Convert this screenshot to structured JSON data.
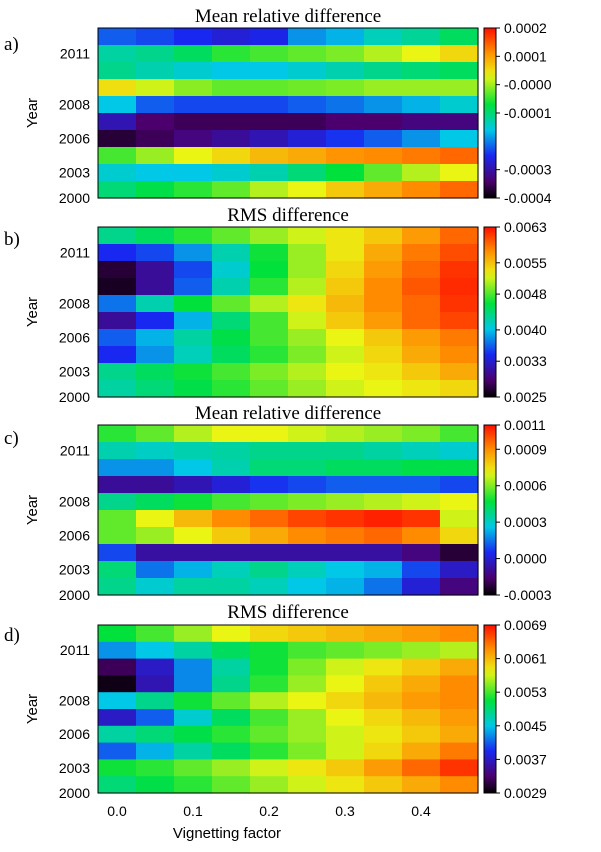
{
  "figure": {
    "x_axis": {
      "label": "Vignetting factor",
      "ticks": [
        0.0,
        0.1,
        0.2,
        0.3,
        0.4
      ],
      "tick_labels": [
        "0.0",
        "0.1",
        "0.2",
        "0.3",
        "0.4"
      ]
    }
  },
  "chart_data": [
    {
      "type": "heatmap",
      "panel_label": "a)",
      "title": "Mean relative difference",
      "ylabel": "Year",
      "xlabel": "",
      "y_tick_labels": [
        "2011",
        "2008",
        "2006",
        "2003",
        "2000"
      ],
      "x": [
        0.0,
        0.05,
        0.1,
        0.15,
        0.2,
        0.25,
        0.3,
        0.35,
        0.4,
        0.45
      ],
      "colorbar": {
        "min": -0.0004,
        "max": 0.0002,
        "tick_values": [
          0.0002,
          0.0001,
          0.0,
          -0.0001,
          -0.0003,
          -0.0004
        ],
        "tick_labels": [
          "0.0002",
          "0.0001",
          "-0.0000",
          "-0.0001",
          "-0.0003",
          "-0.0004"
        ]
      },
      "values_normalized_top_to_bottom": [
        [
          0.3,
          0.28,
          0.25,
          0.22,
          0.24,
          0.35,
          0.38,
          0.44,
          0.47,
          0.52
        ],
        [
          0.46,
          0.48,
          0.52,
          0.58,
          0.6,
          0.62,
          0.64,
          0.68,
          0.72,
          0.76
        ],
        [
          0.48,
          0.45,
          0.42,
          0.4,
          0.4,
          0.42,
          0.45,
          0.48,
          0.5,
          0.52
        ],
        [
          0.75,
          0.7,
          0.65,
          0.62,
          0.62,
          0.63,
          0.64,
          0.66,
          0.66,
          0.66
        ],
        [
          0.4,
          0.3,
          0.28,
          0.28,
          0.28,
          0.3,
          0.32,
          0.35,
          0.38,
          0.42
        ],
        [
          0.18,
          0.1,
          0.08,
          0.08,
          0.08,
          0.08,
          0.1,
          0.1,
          0.12,
          0.12
        ],
        [
          0.05,
          0.08,
          0.12,
          0.15,
          0.18,
          0.22,
          0.26,
          0.3,
          0.35,
          0.4
        ],
        [
          0.6,
          0.66,
          0.72,
          0.76,
          0.8,
          0.82,
          0.85,
          0.86,
          0.88,
          0.9
        ],
        [
          0.42,
          0.4,
          0.4,
          0.42,
          0.45,
          0.5,
          0.55,
          0.62,
          0.68,
          0.72
        ],
        [
          0.5,
          0.54,
          0.58,
          0.62,
          0.68,
          0.72,
          0.78,
          0.82,
          0.86,
          0.9
        ]
      ]
    },
    {
      "type": "heatmap",
      "panel_label": "b)",
      "title": "RMS difference",
      "ylabel": "Year",
      "xlabel": "",
      "y_tick_labels": [
        "2011",
        "2008",
        "2006",
        "2003",
        "2000"
      ],
      "x": [
        0.0,
        0.05,
        0.1,
        0.15,
        0.2,
        0.25,
        0.3,
        0.35,
        0.4,
        0.45
      ],
      "colorbar": {
        "min": 0.0025,
        "max": 0.0063,
        "tick_values": [
          0.0063,
          0.0055,
          0.0048,
          0.004,
          0.0033,
          0.0025
        ],
        "tick_labels": [
          "0.0063",
          "0.0055",
          "0.0048",
          "0.0040",
          "0.0033",
          "0.0025"
        ]
      },
      "values_normalized_top_to_bottom": [
        [
          0.48,
          0.52,
          0.58,
          0.62,
          0.66,
          0.7,
          0.74,
          0.78,
          0.84,
          0.9
        ],
        [
          0.25,
          0.28,
          0.35,
          0.45,
          0.56,
          0.66,
          0.74,
          0.82,
          0.88,
          0.93
        ],
        [
          0.05,
          0.15,
          0.28,
          0.42,
          0.55,
          0.66,
          0.76,
          0.84,
          0.9,
          0.96
        ],
        [
          0.03,
          0.15,
          0.3,
          0.45,
          0.58,
          0.68,
          0.78,
          0.86,
          0.92,
          0.97
        ],
        [
          0.32,
          0.45,
          0.55,
          0.62,
          0.68,
          0.74,
          0.8,
          0.86,
          0.9,
          0.96
        ],
        [
          0.15,
          0.25,
          0.38,
          0.5,
          0.6,
          0.7,
          0.78,
          0.84,
          0.9,
          0.94
        ],
        [
          0.3,
          0.38,
          0.46,
          0.54,
          0.6,
          0.66,
          0.72,
          0.78,
          0.84,
          0.88
        ],
        [
          0.25,
          0.35,
          0.44,
          0.52,
          0.58,
          0.64,
          0.7,
          0.76,
          0.82,
          0.86
        ],
        [
          0.48,
          0.52,
          0.56,
          0.6,
          0.64,
          0.68,
          0.72,
          0.74,
          0.78,
          0.82
        ],
        [
          0.46,
          0.5,
          0.54,
          0.58,
          0.62,
          0.66,
          0.7,
          0.72,
          0.74,
          0.76
        ]
      ]
    },
    {
      "type": "heatmap",
      "panel_label": "c)",
      "title": "Mean relative difference",
      "ylabel": "Year",
      "xlabel": "",
      "y_tick_labels": [
        "2011",
        "2008",
        "2006",
        "2003",
        "2000"
      ],
      "x": [
        0.0,
        0.05,
        0.1,
        0.15,
        0.2,
        0.25,
        0.3,
        0.35,
        0.4,
        0.45
      ],
      "colorbar": {
        "min": -0.0003,
        "max": 0.0011,
        "tick_values": [
          0.0011,
          0.0009,
          0.0006,
          0.0003,
          0.0,
          -0.0003
        ],
        "tick_labels": [
          "0.0011",
          "0.0009",
          "0.0006",
          "0.0003",
          "0.0000",
          "-0.0003"
        ]
      },
      "values_normalized_top_to_bottom": [
        [
          0.58,
          0.62,
          0.68,
          0.72,
          0.72,
          0.7,
          0.68,
          0.66,
          0.64,
          0.6
        ],
        [
          0.45,
          0.43,
          0.45,
          0.46,
          0.48,
          0.48,
          0.48,
          0.46,
          0.44,
          0.42
        ],
        [
          0.35,
          0.35,
          0.4,
          0.45,
          0.5,
          0.5,
          0.52,
          0.52,
          0.54,
          0.54
        ],
        [
          0.15,
          0.15,
          0.18,
          0.22,
          0.26,
          0.28,
          0.3,
          0.3,
          0.3,
          0.28
        ],
        [
          0.48,
          0.52,
          0.56,
          0.6,
          0.62,
          0.64,
          0.66,
          0.68,
          0.7,
          0.72
        ],
        [
          0.62,
          0.72,
          0.8,
          0.86,
          0.9,
          0.94,
          0.96,
          0.98,
          0.96,
          0.7
        ],
        [
          0.62,
          0.66,
          0.72,
          0.78,
          0.82,
          0.86,
          0.88,
          0.9,
          0.86,
          0.76
        ],
        [
          0.28,
          0.16,
          0.16,
          0.16,
          0.16,
          0.16,
          0.16,
          0.16,
          0.12,
          0.05
        ],
        [
          0.5,
          0.32,
          0.38,
          0.44,
          0.48,
          0.44,
          0.4,
          0.38,
          0.28,
          0.2
        ],
        [
          0.48,
          0.42,
          0.46,
          0.46,
          0.44,
          0.4,
          0.38,
          0.32,
          0.22,
          0.12
        ]
      ]
    },
    {
      "type": "heatmap",
      "panel_label": "d)",
      "title": "RMS difference",
      "ylabel": "Year",
      "xlabel": "Vignetting factor",
      "y_tick_labels": [
        "2011",
        "2008",
        "2006",
        "2003",
        "2000"
      ],
      "x": [
        0.0,
        0.05,
        0.1,
        0.15,
        0.2,
        0.25,
        0.3,
        0.35,
        0.4,
        0.45
      ],
      "colorbar": {
        "min": 0.0029,
        "max": 0.0069,
        "tick_values": [
          0.0069,
          0.0061,
          0.0053,
          0.0045,
          0.0037,
          0.0029
        ],
        "tick_labels": [
          "0.0069",
          "0.0061",
          "0.0053",
          "0.0045",
          "0.0037",
          "0.0029"
        ]
      },
      "values_normalized_top_to_bottom": [
        [
          0.55,
          0.6,
          0.66,
          0.72,
          0.76,
          0.78,
          0.8,
          0.82,
          0.84,
          0.86
        ],
        [
          0.35,
          0.4,
          0.46,
          0.52,
          0.56,
          0.6,
          0.62,
          0.64,
          0.66,
          0.68
        ],
        [
          0.08,
          0.2,
          0.34,
          0.46,
          0.56,
          0.64,
          0.7,
          0.74,
          0.78,
          0.82
        ],
        [
          0.02,
          0.18,
          0.34,
          0.48,
          0.58,
          0.66,
          0.72,
          0.78,
          0.82,
          0.86
        ],
        [
          0.4,
          0.48,
          0.56,
          0.62,
          0.68,
          0.72,
          0.76,
          0.8,
          0.84,
          0.86
        ],
        [
          0.2,
          0.3,
          0.42,
          0.52,
          0.6,
          0.66,
          0.72,
          0.76,
          0.8,
          0.84
        ],
        [
          0.46,
          0.5,
          0.54,
          0.58,
          0.62,
          0.66,
          0.7,
          0.74,
          0.78,
          0.82
        ],
        [
          0.3,
          0.38,
          0.46,
          0.52,
          0.58,
          0.64,
          0.7,
          0.76,
          0.82,
          0.88
        ],
        [
          0.56,
          0.58,
          0.62,
          0.66,
          0.7,
          0.74,
          0.78,
          0.84,
          0.9,
          0.96
        ],
        [
          0.5,
          0.54,
          0.58,
          0.62,
          0.66,
          0.7,
          0.74,
          0.78,
          0.82,
          0.86
        ]
      ]
    }
  ]
}
